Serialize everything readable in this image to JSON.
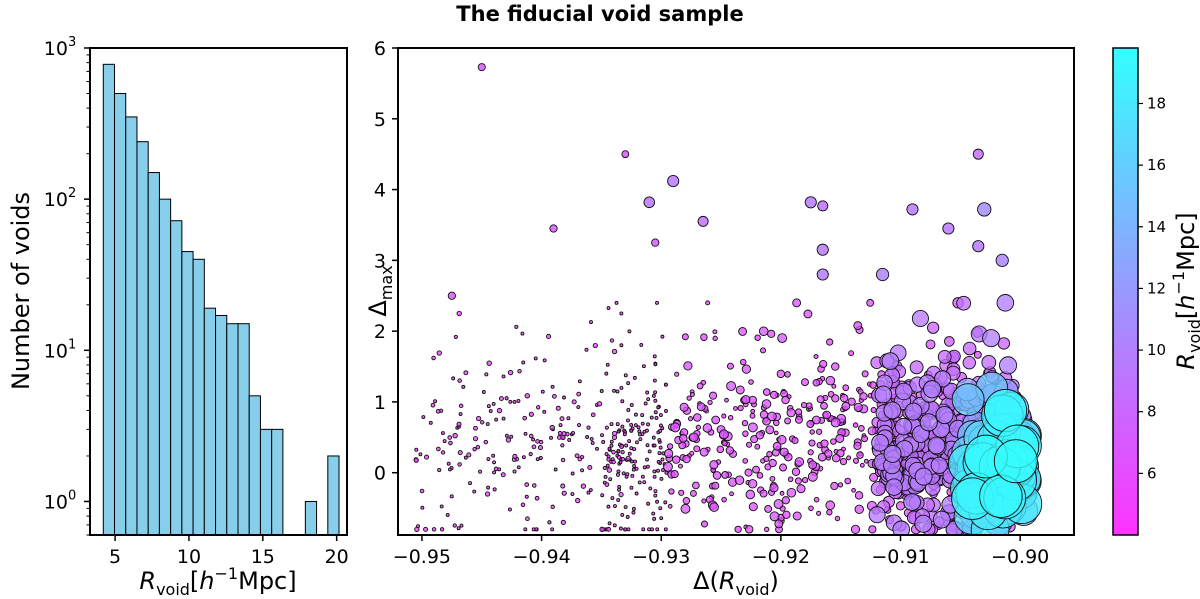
{
  "title": "The fiducial void sample",
  "chart_data": [
    {
      "type": "bar",
      "name": "histogram",
      "bar_color": "#87ceeb",
      "edge_color": "#000000",
      "xlabel": "Rvoid[h⁻¹Mpc]",
      "xlabel_parts": {
        "R": "R",
        "sub": "void",
        "bracket_open": "[",
        "h": "h",
        "sup": "−1",
        "unit": "Mpc]"
      },
      "ylabel": "Number of voids",
      "yscale": "log",
      "xlim": [
        3.3,
        20.7
      ],
      "ylim": [
        0.6,
        1000
      ],
      "xticks": [
        5,
        10,
        15,
        20
      ],
      "xticklabels": [
        "5",
        "10",
        "15",
        "20"
      ],
      "yticks": [
        1,
        10,
        100,
        1000
      ],
      "yticklabels": [
        {
          "base": "10",
          "exp": "0"
        },
        {
          "base": "10",
          "exp": "1"
        },
        {
          "base": "10",
          "exp": "2"
        },
        {
          "base": "10",
          "exp": "3"
        }
      ],
      "bins": [
        {
          "x0": 4.2,
          "x1": 4.96,
          "count": 780
        },
        {
          "x0": 4.96,
          "x1": 5.72,
          "count": 500
        },
        {
          "x0": 5.72,
          "x1": 6.48,
          "count": 350
        },
        {
          "x0": 6.48,
          "x1": 7.24,
          "count": 240
        },
        {
          "x0": 7.24,
          "x1": 8.0,
          "count": 150
        },
        {
          "x0": 8.0,
          "x1": 8.76,
          "count": 100
        },
        {
          "x0": 8.76,
          "x1": 9.52,
          "count": 72
        },
        {
          "x0": 9.52,
          "x1": 10.28,
          "count": 45
        },
        {
          "x0": 10.28,
          "x1": 11.04,
          "count": 40
        },
        {
          "x0": 11.04,
          "x1": 11.8,
          "count": 19
        },
        {
          "x0": 11.8,
          "x1": 12.56,
          "count": 17
        },
        {
          "x0": 12.56,
          "x1": 13.32,
          "count": 15
        },
        {
          "x0": 13.32,
          "x1": 14.08,
          "count": 15
        },
        {
          "x0": 14.08,
          "x1": 14.84,
          "count": 5
        },
        {
          "x0": 14.84,
          "x1": 15.6,
          "count": 3
        },
        {
          "x0": 15.6,
          "x1": 16.36,
          "count": 3
        },
        {
          "x0": 16.36,
          "x1": 17.12,
          "count": 0
        },
        {
          "x0": 17.12,
          "x1": 17.88,
          "count": 0
        },
        {
          "x0": 17.88,
          "x1": 18.64,
          "count": 1
        },
        {
          "x0": 18.64,
          "x1": 19.4,
          "count": 0
        },
        {
          "x0": 19.4,
          "x1": 20.16,
          "count": 2
        }
      ]
    },
    {
      "type": "scatter",
      "name": "scatter",
      "xlabel": "Δ(Rvoid)",
      "xlabel_parts": {
        "pre": "Δ(",
        "R": "R",
        "sub": "void",
        "post": ")"
      },
      "ylabel": "Δmax",
      "ylabel_parts": {
        "Delta": "Δ",
        "sub": "max"
      },
      "xlim": [
        -0.952,
        -0.8955
      ],
      "ylim": [
        -0.88,
        6.0
      ],
      "xticks": [
        -0.95,
        -0.94,
        -0.93,
        -0.92,
        -0.91,
        -0.9
      ],
      "xticklabels": [
        "−0.95",
        "−0.94",
        "−0.93",
        "−0.92",
        "−0.91",
        "−0.90"
      ],
      "yticks": [
        0,
        1,
        2,
        3,
        4,
        5,
        6
      ],
      "yticklabels": [
        "0",
        "1",
        "2",
        "3",
        "4",
        "5",
        "6"
      ],
      "color_encodes": "Rvoid",
      "size_encodes": "Rvoid",
      "random_seed": 7,
      "highlighted_points": [
        {
          "x": -0.945,
          "y": 5.73,
          "r": 4.3
        },
        {
          "x": -0.933,
          "y": 4.5,
          "r": 4.1
        },
        {
          "x": -0.9035,
          "y": 4.5,
          "r": 7
        },
        {
          "x": -0.929,
          "y": 4.12,
          "r": 8
        },
        {
          "x": -0.931,
          "y": 3.82,
          "r": 7.5
        },
        {
          "x": -0.9175,
          "y": 3.82,
          "r": 8
        },
        {
          "x": -0.9165,
          "y": 3.77,
          "r": 7
        },
        {
          "x": -0.909,
          "y": 3.72,
          "r": 8
        },
        {
          "x": -0.903,
          "y": 3.72,
          "r": 10
        },
        {
          "x": -0.9265,
          "y": 3.55,
          "r": 7
        },
        {
          "x": -0.939,
          "y": 3.45,
          "r": 4.5
        },
        {
          "x": -0.906,
          "y": 3.45,
          "r": 8
        },
        {
          "x": -0.9305,
          "y": 3.25,
          "r": 4.5
        },
        {
          "x": -0.9165,
          "y": 3.15,
          "r": 8
        },
        {
          "x": -0.9035,
          "y": 3.2,
          "r": 8
        },
        {
          "x": -0.9115,
          "y": 2.8,
          "r": 9
        },
        {
          "x": -0.9015,
          "y": 3.0,
          "r": 9
        },
        {
          "x": -0.9165,
          "y": 2.8,
          "r": 8
        },
        {
          "x": -0.9475,
          "y": 2.5,
          "r": 4.5
        }
      ],
      "point_groups": [
        {
          "n": 220,
          "x": [
            -0.9505,
            -0.9325
          ],
          "y_mean": 0.25,
          "y_sd": 0.65,
          "rv_range": [
            4.2,
            5.3
          ]
        },
        {
          "n": 160,
          "x": [
            -0.935,
            -0.9295
          ],
          "y_mean": 0.3,
          "y_sd": 0.75,
          "rv_range": [
            4.0,
            4.6
          ]
        },
        {
          "n": 320,
          "x": [
            -0.9295,
            -0.912
          ],
          "y_mean": 0.35,
          "y_sd": 0.6,
          "rv_range": [
            5.0,
            7.0
          ]
        },
        {
          "n": 650,
          "x": [
            -0.912,
            -0.9005
          ],
          "y_mean": 0.35,
          "y_sd": 0.55,
          "rv_range": [
            6.0,
            10.0
          ]
        },
        {
          "n": 140,
          "x": [
            -0.9045,
            -0.8995
          ],
          "y_mean": 0.05,
          "y_sd": 0.35,
          "rv_range": [
            10.0,
            19.6
          ]
        }
      ]
    },
    {
      "type": "colorbar",
      "name": "colorbar",
      "label": "Rvoid[h⁻¹Mpc]",
      "label_parts": {
        "R": "R",
        "sub": "void",
        "bracket_open": "[",
        "h": "h",
        "sup": "−1",
        "unit": "Mpc]"
      },
      "range": [
        4.0,
        19.8
      ],
      "ticks": [
        6,
        8,
        10,
        12,
        14,
        16,
        18
      ],
      "ticklabels": [
        "6",
        "8",
        "10",
        "12",
        "14",
        "16",
        "18"
      ],
      "color_low": "#ff33ff",
      "color_high": "#33ffff"
    }
  ]
}
